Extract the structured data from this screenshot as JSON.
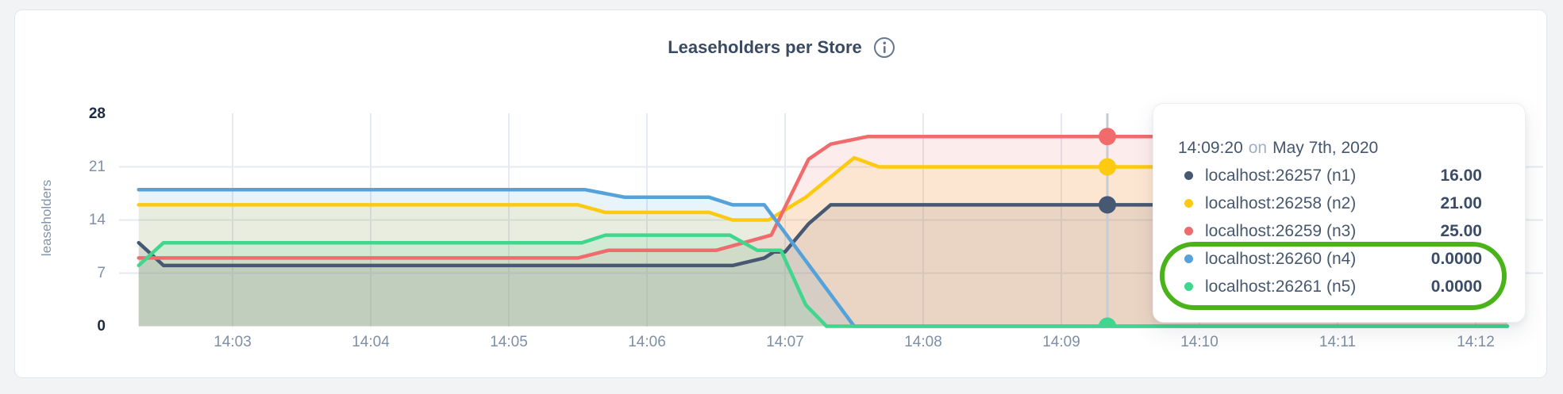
{
  "page": {
    "background": "#f2f3f5",
    "card_background": "#ffffff",
    "card_border": "#e2e6eb"
  },
  "header": {
    "title": "Leaseholders per Store"
  },
  "axes": {
    "ylabel": "leaseholders",
    "yticks": [
      {
        "label": "28",
        "value": 28,
        "bold": true
      },
      {
        "label": "21",
        "value": 21,
        "bold": false
      },
      {
        "label": "14",
        "value": 14,
        "bold": false
      },
      {
        "label": "7",
        "value": 7,
        "bold": false
      },
      {
        "label": "0",
        "value": 0,
        "bold": true
      }
    ],
    "xticks": [
      {
        "label": "14:03",
        "minute": 3
      },
      {
        "label": "14:04",
        "minute": 4
      },
      {
        "label": "14:05",
        "minute": 5
      },
      {
        "label": "14:06",
        "minute": 6
      },
      {
        "label": "14:07",
        "minute": 7
      },
      {
        "label": "14:08",
        "minute": 8
      },
      {
        "label": "14:09",
        "minute": 9
      },
      {
        "label": "14:10",
        "minute": 10
      },
      {
        "label": "14:11",
        "minute": 11
      },
      {
        "label": "14:12",
        "minute": 12
      }
    ]
  },
  "chart_data": {
    "type": "area",
    "title": "Leaseholders per Store",
    "xlabel": "",
    "ylabel": "leaseholders",
    "ylim": [
      0,
      28
    ],
    "x_domain_minutes_after_1400": [
      2.32,
      12.23
    ],
    "grid": true,
    "fill_opacity": 0.13,
    "series": [
      {
        "name": "localhost:26257 (n1)",
        "color": "#475872",
        "points": [
          [
            2.32,
            11
          ],
          [
            2.5,
            8
          ],
          [
            6.62,
            8
          ],
          [
            6.85,
            9
          ],
          [
            6.92,
            9.8
          ],
          [
            7.0,
            9.8
          ],
          [
            7.17,
            13.5
          ],
          [
            7.33,
            16
          ],
          [
            12.23,
            16
          ]
        ]
      },
      {
        "name": "localhost:26258 (n2)",
        "color": "#fcca10",
        "points": [
          [
            2.32,
            16
          ],
          [
            5.5,
            16
          ],
          [
            5.7,
            15
          ],
          [
            6.45,
            15
          ],
          [
            6.62,
            14
          ],
          [
            6.88,
            14
          ],
          [
            7.15,
            17
          ],
          [
            7.5,
            22.2
          ],
          [
            7.68,
            21
          ],
          [
            12.23,
            21
          ]
        ]
      },
      {
        "name": "localhost:26259 (n3)",
        "color": "#f06c6c",
        "points": [
          [
            2.32,
            9
          ],
          [
            5.5,
            9
          ],
          [
            5.72,
            10
          ],
          [
            6.5,
            10
          ],
          [
            6.9,
            12
          ],
          [
            7.17,
            22
          ],
          [
            7.33,
            24
          ],
          [
            7.6,
            25
          ],
          [
            12.23,
            25
          ]
        ]
      },
      {
        "name": "localhost:26260 (n4)",
        "color": "#55a1d9",
        "points": [
          [
            2.32,
            18
          ],
          [
            5.55,
            18
          ],
          [
            5.84,
            17
          ],
          [
            6.45,
            17
          ],
          [
            6.62,
            16
          ],
          [
            6.85,
            16
          ],
          [
            7.5,
            0
          ],
          [
            12.23,
            0
          ]
        ]
      },
      {
        "name": "localhost:26261 (n5)",
        "color": "#40d68e",
        "points": [
          [
            2.32,
            8
          ],
          [
            2.5,
            11
          ],
          [
            5.53,
            11
          ],
          [
            5.7,
            12
          ],
          [
            6.6,
            12
          ],
          [
            6.8,
            10
          ],
          [
            6.97,
            10
          ],
          [
            7.15,
            2.8
          ],
          [
            7.3,
            0
          ],
          [
            12.23,
            0
          ]
        ]
      }
    ],
    "hover": {
      "time": "14:09:20",
      "x_minute": 9.3333,
      "line_color": "#c6ccd5",
      "values": [
        16,
        21,
        25,
        0,
        0
      ]
    }
  },
  "tooltip": {
    "time": "14:09:20",
    "preposition": "on",
    "date": "May 7th, 2020",
    "rows": [
      {
        "label": "localhost:26257 (n1)",
        "value": "16.00",
        "color": "#475872"
      },
      {
        "label": "localhost:26258 (n2)",
        "value": "21.00",
        "color": "#fcca10"
      },
      {
        "label": "localhost:26259 (n3)",
        "value": "25.00",
        "color": "#f06c6c"
      },
      {
        "label": "localhost:26260 (n4)",
        "value": "0.0000",
        "color": "#55a1d9"
      },
      {
        "label": "localhost:26261 (n5)",
        "value": "0.0000",
        "color": "#40d68e"
      }
    ],
    "annotation_color": "#4bb31a"
  }
}
